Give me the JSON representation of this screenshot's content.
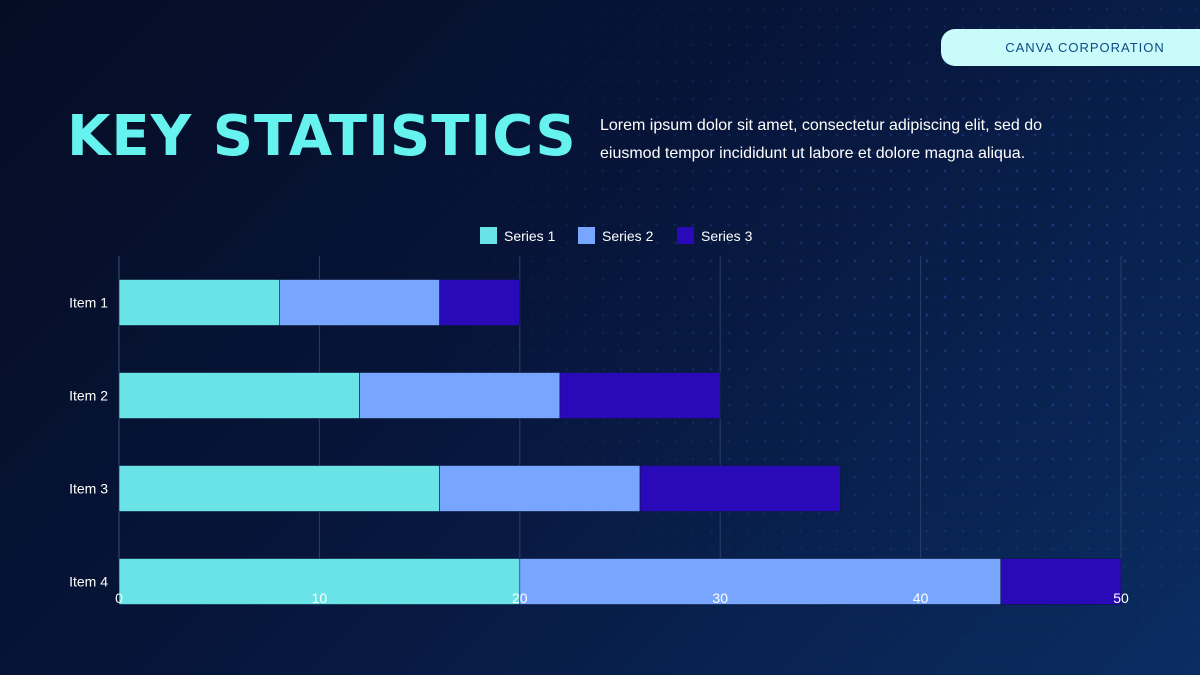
{
  "header": {
    "brand": "CANVA CORPORATION",
    "title": "KEY STATISTICS",
    "description": "Lorem ipsum dolor sit amet, consectetur adipiscing elit, sed do eiusmod tempor incididunt ut labore et dolore magna aliqua."
  },
  "colors": {
    "title": "#66f2ef",
    "brand_pill": "#c9fbfb",
    "brand_text": "#0d4b86"
  },
  "chart_data": {
    "type": "bar",
    "orientation": "horizontal",
    "stacked": true,
    "categories": [
      "Item 1",
      "Item 2",
      "Item 3",
      "Item 4"
    ],
    "series": [
      {
        "name": "Series 1",
        "color": "#6ae3e6",
        "values": [
          8,
          12,
          16,
          20
        ]
      },
      {
        "name": "Series 2",
        "color": "#78a6ff",
        "values": [
          8,
          10,
          10,
          24
        ]
      },
      {
        "name": "Series 3",
        "color": "#2a0ab8",
        "values": [
          4,
          8,
          10,
          6
        ]
      }
    ],
    "xlim": [
      0,
      50
    ],
    "xticks": [
      0,
      10,
      20,
      30,
      40,
      50
    ],
    "grid": true,
    "legend_position": "top"
  }
}
